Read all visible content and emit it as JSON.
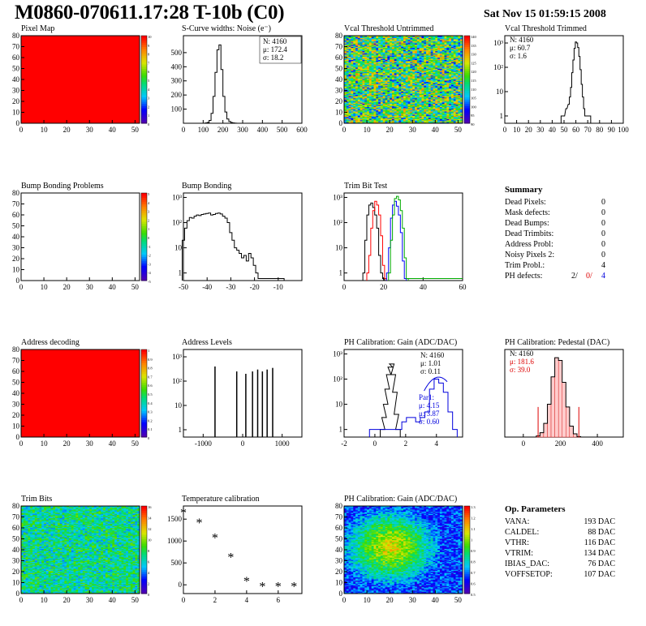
{
  "header": {
    "title": "M0860-070611.17:28 T-10b (C0)",
    "date": "Sat Nov 15 01:59:15 2008"
  },
  "panels": {
    "pixel_map": {
      "title": "Pixel Map",
      "palette_labels": [
        "10",
        "9",
        "8",
        "7",
        "6",
        "5",
        "4",
        "3",
        "2",
        "1",
        "0"
      ]
    },
    "noise": {
      "title": "S-Curve widths: Noise (e⁻)",
      "stats": [
        "N: 4160",
        "μ: 172.4",
        "σ: 18.2"
      ]
    },
    "vcal_untrimmed": {
      "title": "Vcal Threshold Untrimmed",
      "palette_labels": [
        "140",
        "135",
        "130",
        "125",
        "120",
        "115",
        "110",
        "105",
        "100",
        "95",
        "90"
      ]
    },
    "vcal_trimmed": {
      "title": "Vcal Threshold Trimmed",
      "stats": [
        "N: 4160",
        "μ: 60.7",
        "σ:  1.6"
      ]
    },
    "bump_problems": {
      "title": "Bump Bonding Problems",
      "palette_labels": [
        "5",
        "4",
        "3",
        "2",
        "1",
        "0",
        "-1",
        "-2",
        "-3",
        "-4",
        "-5"
      ]
    },
    "bump": {
      "title": "Bump Bonding"
    },
    "trim_bit": {
      "title": "Trim Bit Test"
    },
    "summary": {
      "title": "Summary",
      "rows": [
        {
          "label": "Dead Pixels:",
          "value": "0"
        },
        {
          "label": "Mask defects:",
          "value": "0"
        },
        {
          "label": "Dead Bumps:",
          "value": "0"
        },
        {
          "label": "Dead Trimbits:",
          "value": "0"
        },
        {
          "label": "Address Probl:",
          "value": "0"
        },
        {
          "label": "Noisy Pixels 2:",
          "value": "0"
        },
        {
          "label": "Trim Probl.:",
          "value": "4"
        }
      ],
      "ph_label": "PH defects:",
      "ph_values": [
        "2/",
        "0/",
        "4"
      ]
    },
    "address_decoding": {
      "title": "Address decoding",
      "palette_labels": [
        "1",
        "0.9",
        "0.8",
        "0.7",
        "0.6",
        "0.5",
        "0.4",
        "0.3",
        "0.2",
        "0.1",
        "0"
      ]
    },
    "address_levels": {
      "title": "Address Levels"
    },
    "ph_gain_hist": {
      "title": "PH Calibration: Gain (ADC/DAC)",
      "stats": [
        "N: 4160",
        "μ: 1.01",
        "σ: 0.11"
      ],
      "fit_text": [
        "Par1:",
        "μ: 4.15",
        "μ: 3.87",
        "σ: 0.60"
      ]
    },
    "ph_pedestal": {
      "title": "PH Calibration: Pedestal (DAC)",
      "stats": [
        "N: 4160",
        "μ: 181.6",
        "σ: 39.0"
      ]
    },
    "trim_bits": {
      "title": "Trim Bits",
      "palette_labels": [
        "16",
        "14",
        "12",
        "10",
        "8",
        "6",
        "4",
        "2",
        "0"
      ]
    },
    "temperature": {
      "title": "Temperature calibration"
    },
    "ph_gain_map": {
      "title": "PH Calibration: Gain (ADC/DAC)",
      "palette_labels": [
        "1.3",
        "1.2",
        "1.1",
        "1",
        "0.9",
        "0.8",
        "0.7",
        "0.6",
        "0.5"
      ]
    },
    "op_params": {
      "title": "Op. Parameters",
      "rows": [
        {
          "label": "VANA:",
          "value": "193 DAC"
        },
        {
          "label": "CALDEL:",
          "value": "88 DAC"
        },
        {
          "label": "VTHR:",
          "value": "116 DAC"
        },
        {
          "label": "VTRIM:",
          "value": "134 DAC"
        },
        {
          "label": "IBIAS_DAC:",
          "value": "76 DAC"
        },
        {
          "label": "VOFFSETOP:",
          "value": "107 DAC"
        }
      ]
    }
  },
  "colors": {
    "ph_red": "#dd0000",
    "ph_blue": "#0000dd",
    "fill_red": "#ff0000"
  },
  "chart_data": [
    {
      "id": "pixel_map",
      "type": "heatmap",
      "title": "Pixel Map",
      "xlim": [
        0,
        52
      ],
      "ylim": [
        0,
        80
      ],
      "xticks": [
        0,
        10,
        20,
        30,
        40,
        50
      ],
      "yticks": [
        0,
        10,
        20,
        30,
        40,
        50,
        60,
        70,
        80
      ],
      "zlim": [
        0,
        10
      ],
      "uniform_value": 10
    },
    {
      "id": "noise",
      "type": "line",
      "title": "S-Curve widths: Noise (e⁻)",
      "xlim": [
        0,
        600
      ],
      "ylim": [
        0,
        620
      ],
      "xticks": [
        0,
        100,
        200,
        300,
        400,
        500,
        600
      ],
      "yticks": [
        100,
        200,
        300,
        400,
        500
      ],
      "x": [
        115,
        125,
        135,
        145,
        155,
        165,
        175,
        185,
        195,
        205,
        215,
        225,
        235,
        245,
        255,
        265,
        275
      ],
      "values": [
        2,
        6,
        20,
        70,
        190,
        360,
        520,
        555,
        380,
        190,
        80,
        30,
        12,
        5,
        2,
        1,
        0
      ]
    },
    {
      "id": "vcal_untrimmed",
      "type": "heatmap",
      "title": "Vcal Threshold Untrimmed",
      "xlim": [
        0,
        52
      ],
      "ylim": [
        0,
        80
      ],
      "xticks": [
        0,
        10,
        20,
        30,
        40,
        50
      ],
      "yticks": [
        0,
        10,
        20,
        30,
        40,
        50,
        60,
        70,
        80
      ],
      "zlim": [
        90,
        140
      ]
    },
    {
      "id": "vcal_trimmed",
      "type": "line",
      "title": "Vcal Threshold Trimmed",
      "log_y": true,
      "xlim": [
        0,
        100
      ],
      "ylim": [
        0.5,
        2000
      ],
      "xticks": [
        0,
        10,
        20,
        30,
        40,
        50,
        60,
        70,
        80,
        90,
        100
      ],
      "yticks": [
        1,
        10,
        100,
        1000
      ],
      "x": [
        48,
        50,
        52,
        54,
        55,
        56,
        57,
        58,
        59,
        60,
        61,
        62,
        63,
        64,
        65,
        66,
        67,
        68,
        70,
        72
      ],
      "values": [
        1,
        1,
        2,
        3,
        6,
        15,
        60,
        200,
        600,
        1100,
        1000,
        650,
        280,
        80,
        20,
        6,
        2,
        1,
        1,
        1
      ]
    },
    {
      "id": "bump_problems",
      "type": "heatmap",
      "title": "Bump Bonding Problems",
      "xlim": [
        0,
        52
      ],
      "ylim": [
        0,
        80
      ],
      "xticks": [
        0,
        10,
        20,
        30,
        40,
        50
      ],
      "yticks": [
        0,
        10,
        20,
        30,
        40,
        50,
        60,
        70,
        80
      ],
      "zlim": [
        -5,
        5
      ],
      "empty": true
    },
    {
      "id": "bump",
      "type": "line",
      "title": "Bump Bonding",
      "log_y": true,
      "xlim": [
        -50,
        0
      ],
      "ylim": [
        0.5,
        1500
      ],
      "xticks": [
        -50,
        -40,
        -30,
        -20,
        -10
      ],
      "yticks": [
        1,
        10,
        100,
        1000
      ],
      "x": [
        -50,
        -49,
        -48,
        -47,
        -46,
        -45,
        -44,
        -43,
        -42,
        -41,
        -40,
        -39,
        -38,
        -37,
        -36,
        -35,
        -34,
        -33,
        -32,
        -31,
        -30,
        -29,
        -28,
        -27,
        -26,
        -25,
        -24,
        -23,
        -22,
        -21,
        -20,
        -19,
        -18,
        -17,
        -16,
        -15,
        -14,
        -13,
        -12,
        -11,
        -10,
        -9,
        -8
      ],
      "values": [
        20,
        60,
        120,
        160,
        150,
        180,
        200,
        190,
        210,
        220,
        230,
        240,
        200,
        210,
        230,
        240,
        220,
        180,
        150,
        100,
        40,
        20,
        10,
        8,
        6,
        4,
        5,
        3,
        6,
        4,
        2,
        1,
        0.6,
        0.6,
        0.6,
        0.6,
        0.6,
        0.6,
        0.6,
        0.6,
        0.6,
        0.6,
        0.6
      ]
    },
    {
      "id": "trim_bit",
      "type": "line",
      "title": "Trim Bit Test",
      "log_y": true,
      "xlim": [
        0,
        60
      ],
      "ylim": [
        0.5,
        1500
      ],
      "xticks": [
        0,
        20,
        40,
        60
      ],
      "yticks": [
        1,
        10,
        100,
        1000
      ],
      "series": [
        {
          "color": "#000000",
          "x": [
            10,
            11,
            12,
            13,
            14,
            15,
            16,
            17,
            18,
            19,
            20
          ],
          "values": [
            1,
            20,
            200,
            500,
            600,
            400,
            200,
            60,
            5,
            1,
            0.6
          ]
        },
        {
          "color": "#ff0000",
          "x": [
            12,
            13,
            14,
            15,
            16,
            17,
            18,
            19,
            20,
            21
          ],
          "values": [
            1,
            5,
            60,
            300,
            700,
            500,
            200,
            30,
            2,
            0.6
          ]
        },
        {
          "color": "#0000ff",
          "x": [
            22,
            23,
            24,
            25,
            26,
            27,
            28,
            29,
            30,
            31
          ],
          "values": [
            1,
            10,
            150,
            500,
            700,
            450,
            200,
            40,
            3,
            0.6
          ]
        },
        {
          "color": "#00aa00",
          "x": [
            23,
            24,
            25,
            26,
            27,
            28,
            29,
            30,
            31,
            32
          ],
          "values": [
            1,
            20,
            200,
            900,
            1100,
            800,
            300,
            60,
            4,
            0.6
          ]
        }
      ]
    },
    {
      "id": "address_decoding",
      "type": "heatmap",
      "title": "Address decoding",
      "xlim": [
        0,
        52
      ],
      "ylim": [
        0,
        80
      ],
      "xticks": [
        0,
        10,
        20,
        30,
        40,
        50
      ],
      "yticks": [
        0,
        10,
        20,
        30,
        40,
        50,
        60,
        70,
        80
      ],
      "zlim": [
        0,
        1
      ],
      "uniform_value": 1
    },
    {
      "id": "address_levels",
      "type": "bar",
      "title": "Address Levels",
      "log_y": true,
      "xlim": [
        -1500,
        1500
      ],
      "ylim": [
        0.5,
        2000
      ],
      "xticks": [
        -1000,
        0,
        1000
      ],
      "yticks": [
        1,
        10,
        100,
        1000
      ],
      "x": [
        -700,
        -150,
        80,
        250,
        380,
        500,
        620,
        760
      ],
      "values": [
        400,
        250,
        200,
        250,
        300,
        250,
        300,
        350
      ]
    },
    {
      "id": "ph_gain_hist",
      "type": "line",
      "title": "PH Calibration: Gain (ADC/DAC)",
      "log_y": true,
      "xlim": [
        -2,
        5.7
      ],
      "ylim": [
        0.5,
        1500
      ],
      "xticks": [
        -2,
        0,
        2,
        4
      ],
      "yticks": [
        1,
        10,
        100,
        1000
      ],
      "series": [
        {
          "color": "#000000",
          "x": [
            0.5,
            0.6,
            0.7,
            0.8,
            0.9,
            1.0,
            1.1,
            1.2,
            1.3,
            1.4,
            1.5
          ],
          "values": [
            1,
            3,
            10,
            40,
            150,
            300,
            400,
            150,
            30,
            4,
            1
          ]
        },
        {
          "color": "#0000dd",
          "x": [
            -0.2,
            0.1,
            0.4,
            1.6,
            1.9,
            2.2,
            2.5,
            2.8,
            3.1,
            3.4,
            3.7,
            4.0,
            4.3,
            4.6,
            4.9,
            5.2
          ],
          "values": [
            1,
            1,
            1,
            1,
            2,
            3,
            3,
            2,
            3,
            5,
            40,
            100,
            70,
            30,
            5,
            1
          ]
        }
      ]
    },
    {
      "id": "ph_pedestal",
      "type": "bar",
      "title": "PH Calibration: Pedestal (DAC)",
      "xlim": [
        -100,
        540
      ],
      "ylim": [
        0,
        160
      ],
      "xticks": [
        0,
        200,
        400
      ],
      "x": [
        80,
        100,
        120,
        140,
        160,
        180,
        200,
        220,
        240,
        260,
        280,
        300
      ],
      "values": [
        2,
        8,
        25,
        60,
        110,
        145,
        140,
        100,
        55,
        20,
        6,
        1
      ]
    },
    {
      "id": "trim_bits",
      "type": "heatmap",
      "title": "Trim Bits",
      "xlim": [
        0,
        52
      ],
      "ylim": [
        0,
        80
      ],
      "xticks": [
        0,
        10,
        20,
        30,
        40,
        50
      ],
      "yticks": [
        0,
        10,
        20,
        30,
        40,
        50,
        60,
        70,
        80
      ],
      "zlim": [
        0,
        16
      ]
    },
    {
      "id": "temperature",
      "type": "scatter",
      "title": "Temperature calibration",
      "xlim": [
        0,
        7.5
      ],
      "ylim": [
        -200,
        1800
      ],
      "xticks": [
        0,
        2,
        4,
        6
      ],
      "yticks": [
        0,
        500,
        1000,
        1500
      ],
      "x": [
        0,
        1,
        2,
        3,
        4,
        5,
        6,
        7
      ],
      "values": [
        1660,
        1430,
        1090,
        640,
        100,
        -20,
        -20,
        -20
      ]
    },
    {
      "id": "ph_gain_map",
      "type": "heatmap",
      "title": "PH Calibration: Gain (ADC/DAC)",
      "xlim": [
        0,
        52
      ],
      "ylim": [
        0,
        80
      ],
      "xticks": [
        0,
        10,
        20,
        30,
        40,
        50
      ],
      "yticks": [
        0,
        10,
        20,
        30,
        40,
        50,
        60,
        70,
        80
      ],
      "zlim": [
        0.5,
        1.3
      ]
    }
  ]
}
